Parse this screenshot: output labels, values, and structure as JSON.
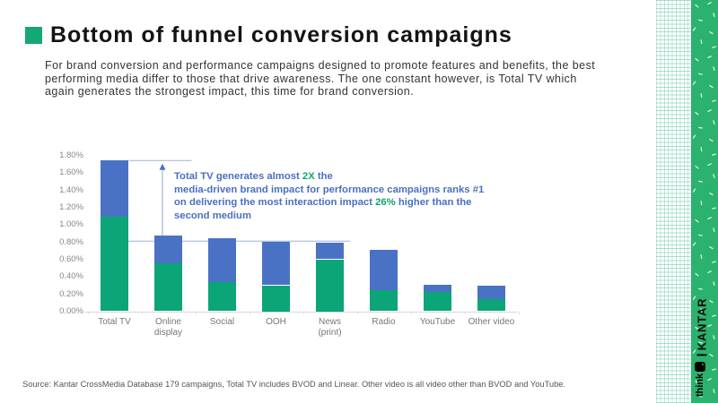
{
  "slide": {
    "title": "Bottom of funnel conversion campaigns",
    "intro": "For brand conversion and performance campaigns designed to promote features and benefits, the best\nperforming media differ to those that drive awareness. The one constant however, is Total TV which\nagain generates the strongest impact, this time for brand conversion.",
    "source": "Source: Kantar CrossMedia Database 179 campaigns, Total TV includes BVOD and Linear. Other video is all video other than BVOD and YouTube."
  },
  "branding": {
    "kantar": "KANTAR",
    "think": "think",
    "strip_green": "#2bb26e"
  },
  "colors": {
    "green": "#0ba578",
    "blue": "#4a72c4",
    "annotation_blue": "#4a6fc0",
    "annotation_green": "#13a36f",
    "axis_text": "#878787",
    "title_bullet": "#14a873"
  },
  "chart_data": {
    "type": "stacked_bar",
    "title": "",
    "categories": [
      "Total TV",
      "Online\ndisplay",
      "Social",
      "OOH",
      "News\n(print)",
      "Radio",
      "YouTube",
      "Other video"
    ],
    "series": [
      {
        "name": "green",
        "color": "#0ba578",
        "values": [
          1.09,
          0.55,
          0.34,
          0.3,
          0.6,
          0.24,
          0.22,
          0.14
        ]
      },
      {
        "name": "blue",
        "color": "#4a72c4",
        "values": [
          0.65,
          0.32,
          0.5,
          0.5,
          0.19,
          0.47,
          0.09,
          0.16
        ]
      }
    ],
    "totals": [
      1.74,
      0.87,
      0.84,
      0.8,
      0.79,
      0.71,
      0.31,
      0.3
    ],
    "ylim": [
      0,
      1.8
    ],
    "ytick_step": 0.2,
    "yticks": [
      "0.00%",
      "0.20%",
      "0.40%",
      "0.60%",
      "0.80%",
      "1.00%",
      "1.20%",
      "1.40%",
      "1.60%",
      "1.80%"
    ],
    "grid": false,
    "annotation": {
      "ref_level": 0.81,
      "arrow_from": 0.87,
      "arrow_to": 1.74,
      "segments": [
        {
          "t": "Total TV generates almost ",
          "c": "blue"
        },
        {
          "t": "2X",
          "c": "green"
        },
        {
          "t": " the\nmedia-driven brand impact for performance campaigns ranks #1\non delivering the most interaction impact ",
          "c": "blue"
        },
        {
          "t": "26%",
          "c": "green"
        },
        {
          "t": " higher than the\nsecond medium",
          "c": "blue"
        }
      ]
    }
  }
}
